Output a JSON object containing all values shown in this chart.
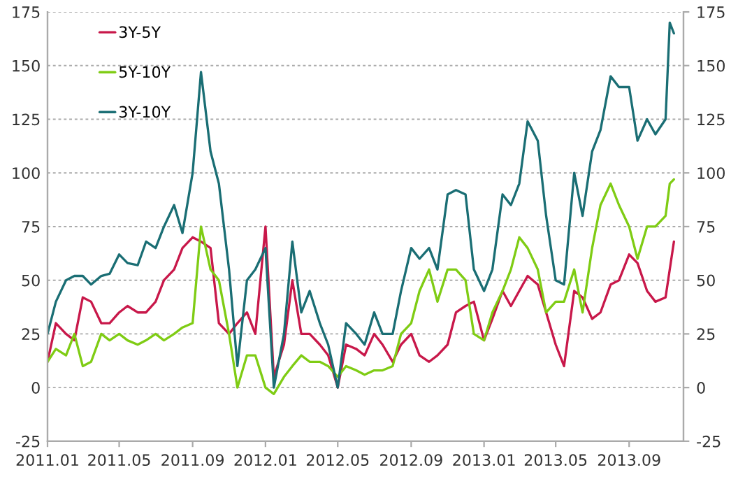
{
  "chart_data": {
    "type": "line",
    "x": [
      "2011-01-01",
      "2011-01-15",
      "2011-02-01",
      "2011-02-15",
      "2011-03-01",
      "2011-03-15",
      "2011-04-01",
      "2011-04-15",
      "2011-05-01",
      "2011-05-15",
      "2011-06-01",
      "2011-06-15",
      "2011-07-01",
      "2011-07-15",
      "2011-08-01",
      "2011-08-15",
      "2011-09-01",
      "2011-09-15",
      "2011-10-01",
      "2011-10-15",
      "2011-11-01",
      "2011-11-15",
      "2011-12-01",
      "2011-12-15",
      "2012-01-01",
      "2012-01-15",
      "2012-02-01",
      "2012-02-15",
      "2012-03-01",
      "2012-03-15",
      "2012-04-01",
      "2012-04-15",
      "2012-05-01",
      "2012-05-15",
      "2012-06-01",
      "2012-06-15",
      "2012-07-01",
      "2012-07-15",
      "2012-08-01",
      "2012-08-15",
      "2012-09-01",
      "2012-09-15",
      "2012-10-01",
      "2012-10-15",
      "2012-11-01",
      "2012-11-15",
      "2012-12-01",
      "2012-12-15",
      "2013-01-01",
      "2013-01-15",
      "2013-02-01",
      "2013-02-15",
      "2013-03-01",
      "2013-03-15",
      "2013-04-01",
      "2013-04-15",
      "2013-05-01",
      "2013-05-15",
      "2013-06-01",
      "2013-06-15",
      "2013-07-01",
      "2013-07-15",
      "2013-08-01",
      "2013-08-15",
      "2013-09-01",
      "2013-09-15",
      "2013-10-01",
      "2013-10-15",
      "2013-11-01",
      "2013-11-08",
      "2013-11-15"
    ],
    "series": [
      {
        "name": "3Y-5Y",
        "color": "#c8184a",
        "values": [
          12,
          30,
          25,
          22,
          42,
          40,
          30,
          30,
          35,
          38,
          35,
          35,
          40,
          50,
          55,
          65,
          70,
          68,
          65,
          30,
          25,
          30,
          35,
          25,
          75,
          5,
          20,
          50,
          25,
          25,
          20,
          15,
          0,
          20,
          18,
          15,
          25,
          20,
          12,
          20,
          25,
          15,
          12,
          15,
          20,
          35,
          38,
          40,
          22,
          32,
          45,
          38,
          45,
          52,
          48,
          35,
          20,
          10,
          45,
          42,
          32,
          35,
          48,
          50,
          62,
          58,
          45,
          40,
          42,
          55,
          68
        ]
      },
      {
        "name": "5Y-10Y",
        "color": "#7fcc14",
        "values": [
          12,
          18,
          15,
          25,
          10,
          12,
          25,
          22,
          25,
          22,
          20,
          22,
          25,
          22,
          25,
          28,
          30,
          75,
          55,
          50,
          25,
          0,
          15,
          15,
          0,
          -3,
          5,
          10,
          15,
          12,
          12,
          10,
          5,
          10,
          8,
          6,
          8,
          8,
          10,
          25,
          30,
          45,
          55,
          40,
          55,
          55,
          50,
          25,
          22,
          35,
          45,
          55,
          70,
          65,
          55,
          35,
          40,
          40,
          55,
          35,
          65,
          85,
          95,
          85,
          75,
          60,
          75,
          75,
          80,
          95,
          97
        ]
      },
      {
        "name": "3Y-10Y",
        "color": "#1a6e74",
        "values": [
          25,
          40,
          50,
          52,
          52,
          48,
          52,
          53,
          62,
          58,
          57,
          68,
          65,
          75,
          85,
          72,
          100,
          147,
          110,
          95,
          55,
          10,
          50,
          55,
          65,
          0,
          25,
          68,
          35,
          45,
          30,
          20,
          0,
          30,
          25,
          20,
          35,
          25,
          25,
          45,
          65,
          60,
          65,
          55,
          90,
          92,
          90,
          55,
          45,
          55,
          90,
          85,
          95,
          124,
          115,
          80,
          50,
          48,
          100,
          80,
          110,
          120,
          145,
          140,
          140,
          115,
          125,
          118,
          125,
          170,
          165
        ]
      }
    ],
    "xlim": [
      "2011-01-01",
      "2013-12-01"
    ],
    "xticks": [
      {
        "value": "2011-01-01",
        "label": "2011.01"
      },
      {
        "value": "2011-05-01",
        "label": "2011.05"
      },
      {
        "value": "2011-09-01",
        "label": "2011.09"
      },
      {
        "value": "2012-01-01",
        "label": "2012.01"
      },
      {
        "value": "2012-05-01",
        "label": "2012.05"
      },
      {
        "value": "2012-09-01",
        "label": "2012.09"
      },
      {
        "value": "2013-01-01",
        "label": "2013.01"
      },
      {
        "value": "2013-05-01",
        "label": "2013.05"
      },
      {
        "value": "2013-09-01",
        "label": "2013.09"
      }
    ],
    "ylim": [
      -25,
      175
    ],
    "yticks": [
      -25,
      0,
      25,
      50,
      75,
      100,
      125,
      150,
      175
    ],
    "y2lim": [
      -25,
      175
    ],
    "y2ticks": [
      -25,
      0,
      25,
      50,
      75,
      100,
      125,
      150,
      175
    ],
    "grid": "y",
    "legend": "top left",
    "marker": "none",
    "line_style": "solid"
  }
}
